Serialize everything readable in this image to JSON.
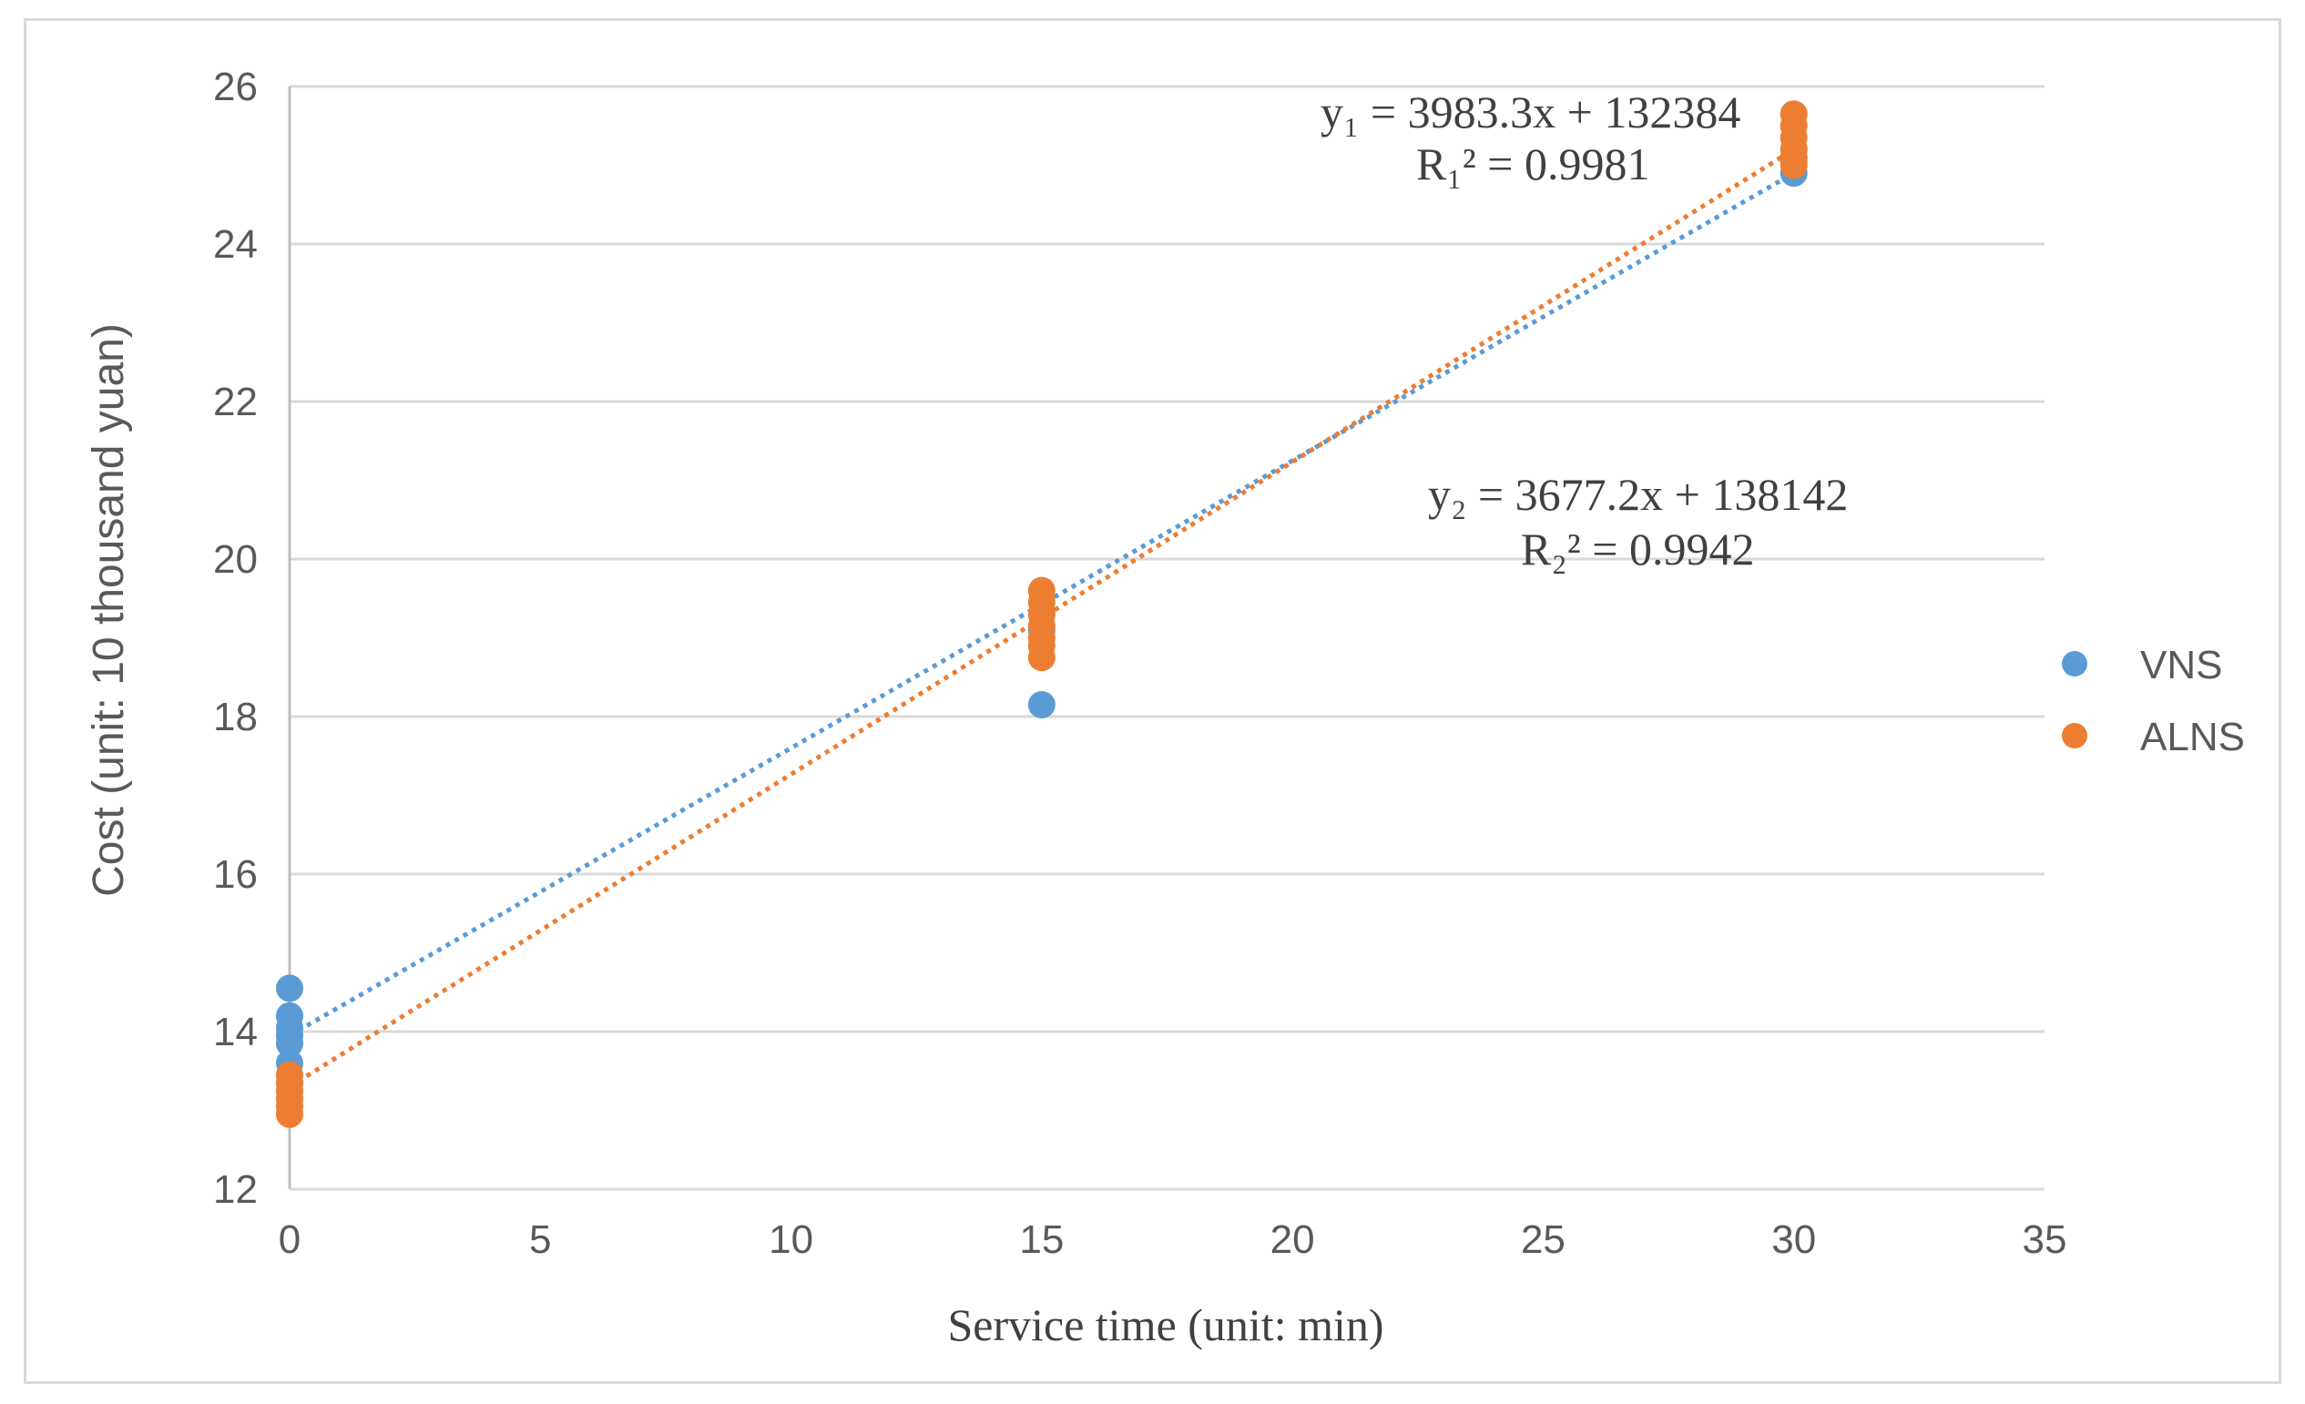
{
  "chart_data": {
    "type": "scatter",
    "title": "",
    "xlabel": "Service time (unit: min)",
    "ylabel": "Cost (unit: 10 thousand yuan)",
    "xlim": [
      0,
      35
    ],
    "ylim": [
      12,
      26
    ],
    "xticks": [
      "0",
      "5",
      "10",
      "15",
      "20",
      "25",
      "30",
      "35"
    ],
    "yticks": [
      "12",
      "14",
      "16",
      "18",
      "20",
      "22",
      "24",
      "26"
    ],
    "grid": "horizontal",
    "legend_position": "right",
    "series": [
      {
        "name": "VNS",
        "color": "#5b9bd5",
        "points": [
          [
            0,
            14.55
          ],
          [
            0,
            14.2
          ],
          [
            0,
            14.05
          ],
          [
            0,
            13.95
          ],
          [
            0,
            13.85
          ],
          [
            0,
            13.6
          ],
          [
            15,
            18.15
          ],
          [
            15,
            19.1
          ],
          [
            15,
            19.3
          ],
          [
            30,
            24.9
          ],
          [
            30,
            25.05
          ],
          [
            30,
            25.2
          ]
        ],
        "trendline": {
          "x": [
            0,
            30
          ],
          "y": [
            13.95,
            24.9
          ]
        }
      },
      {
        "name": "ALNS",
        "color": "#ed7d31",
        "points": [
          [
            0,
            13.45
          ],
          [
            0,
            13.35
          ],
          [
            0,
            13.25
          ],
          [
            0,
            13.15
          ],
          [
            0,
            13.05
          ],
          [
            0,
            12.95
          ],
          [
            15,
            19.6
          ],
          [
            15,
            19.45
          ],
          [
            15,
            19.3
          ],
          [
            15,
            19.15
          ],
          [
            15,
            19.0
          ],
          [
            15,
            18.9
          ],
          [
            15,
            18.75
          ],
          [
            30,
            25.65
          ],
          [
            30,
            25.5
          ],
          [
            30,
            25.35
          ],
          [
            30,
            25.2
          ],
          [
            30,
            25.1
          ],
          [
            30,
            25.0
          ]
        ],
        "trendline": {
          "x": [
            0,
            30
          ],
          "y": [
            13.3,
            25.2
          ]
        }
      }
    ],
    "annotations": [
      {
        "id": "eq1",
        "line1": "y₁ = 3983.3x + 132384",
        "line2": "R₁² = 0.9981"
      },
      {
        "id": "eq2",
        "line1": "y₂ = 3677.2x + 138142",
        "line2": "R₂² = 0.9942"
      }
    ]
  }
}
